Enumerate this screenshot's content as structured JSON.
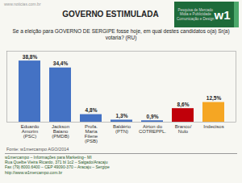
{
  "chart_data": {
    "type": "bar",
    "title": "GOVERNO ESTIMULADA",
    "subtitle": "Se a eleição para GOVERNO DE SERGIPE fosse hoje, em qual destes candidatos o(a) Sr(a) votaria? (RU)",
    "categories": [
      "Eduardo\nAmorim\n(PSC)",
      "Jackson\nBaiano\n(PMDB)",
      "Profa.\nMaria\nFilene\n(PSB)",
      "Baldério\n(PTN)",
      "Airton do\nCOTREPPL.",
      "Branco/\nNulo",
      "Indecisos"
    ],
    "values": [
      38.8,
      34.4,
      4.8,
      1.3,
      0.9,
      8.6,
      12.5
    ],
    "value_labels": [
      "38,8%",
      "34,4%",
      "4,8%",
      "1,3%",
      "0,9%",
      "8,6%",
      "12,5%"
    ],
    "colors": [
      "#4472c4",
      "#4472c4",
      "#4472c4",
      "#4472c4",
      "#4472c4",
      "#c0000a",
      "#f5a623"
    ],
    "ylim": [
      0,
      45
    ],
    "grid": false,
    "data_labels": true,
    "tick_labels": "x",
    "source": "Fonte: w1mercampo AGO/2014",
    "watermark": "www.noticias.com.br",
    "footer": [
      "w1mercampo – Informações para Marketing– MI",
      "Rua Quelbe Vieira Ricardo, 371 bl 1c2 – Salgado/Aracaju",
      "Fax (79) 8000.6400 – CEP 49090-370 – Aracaju – Sergipe",
      "http://www.w1mercampo.com.br"
    ],
    "logo_text": "w1",
    "logo_caption": "Pesquisa de Mercado\nMidia e Publicidade\nComunicação e Design"
  }
}
